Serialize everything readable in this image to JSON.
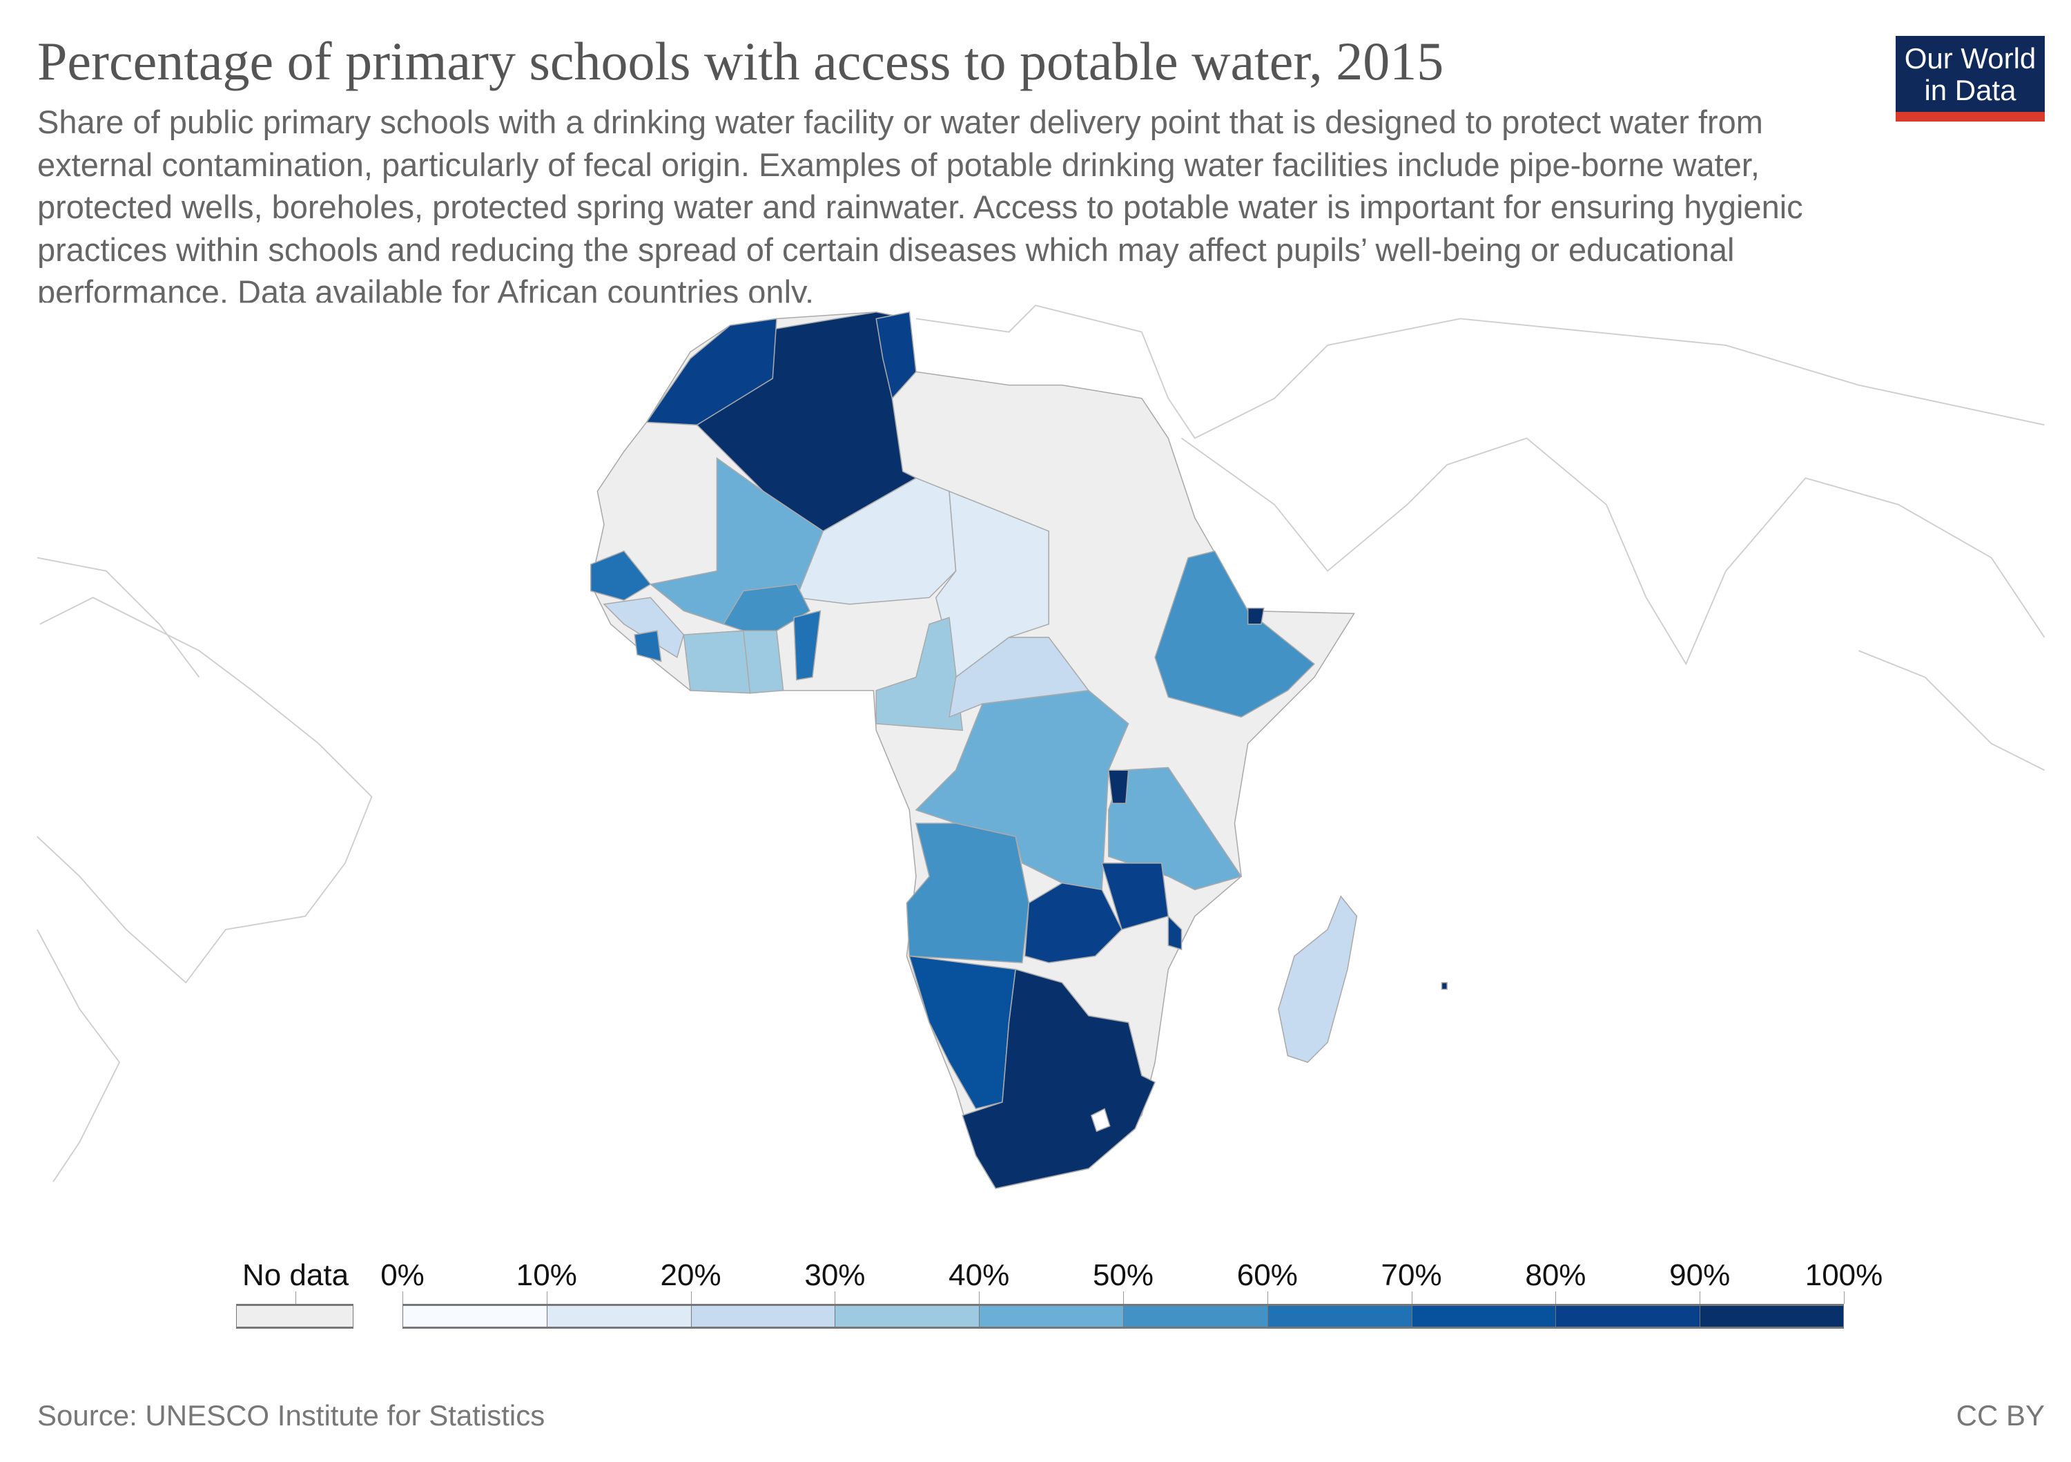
{
  "header": {
    "title": "Percentage of primary schools with access to potable water, 2015",
    "subtitle": "Share of public primary schools with a drinking water facility or water delivery point that is designed to protect water from external contamination, particularly of fecal origin. Examples of potable drinking water facilities include pipe-borne water, protected wells, boreholes, protected spring water and rainwater. Access to potable water is important for ensuring hygienic practices within schools and reducing the spread of certain diseases which may affect pupils’ well-being or educational performance. Data available for African countries only.",
    "logo": [
      "Our World",
      "in Data"
    ]
  },
  "chart_data": {
    "type": "choropleth-map",
    "title": "Percentage of primary schools with access to potable water, 2015",
    "region": "Africa",
    "legend": {
      "no_data_label": "No data",
      "no_data_color": "#eeeeee",
      "tick_labels": [
        "0%",
        "10%",
        "20%",
        "30%",
        "40%",
        "50%",
        "60%",
        "70%",
        "80%",
        "90%",
        "100%"
      ],
      "bins": [
        [
          0,
          10
        ],
        [
          10,
          20
        ],
        [
          20,
          30
        ],
        [
          30,
          40
        ],
        [
          40,
          50
        ],
        [
          50,
          60
        ],
        [
          60,
          70
        ],
        [
          70,
          80
        ],
        [
          80,
          90
        ],
        [
          90,
          100
        ]
      ],
      "colors": [
        "#f7fbff",
        "#deebf7",
        "#c6dbef",
        "#9ecae1",
        "#6baed6",
        "#4292c6",
        "#2171b5",
        "#08519c",
        "#08408a",
        "#08306b"
      ],
      "placement": "bottom"
    }
  },
  "footer": {
    "source": "Source: UNESCO Institute for Statistics",
    "license": "CC BY"
  }
}
